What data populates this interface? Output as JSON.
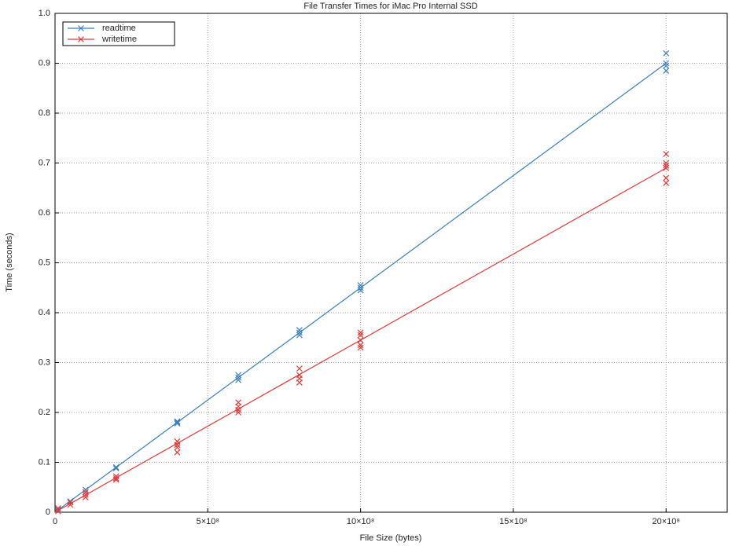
{
  "chart_data": {
    "type": "scatter",
    "title": "File Transfer Times for iMac Pro Internal SSD",
    "x_label": "File Size (bytes)",
    "y_label": "Time (seconds)",
    "xlim": [
      0,
      2200000000
    ],
    "ylim": [
      0,
      1
    ],
    "xticks": [
      0,
      {
        "value": 500000000,
        "label": "5×10⁸"
      },
      {
        "value": 1000000000,
        "label": "10×10⁸"
      },
      {
        "value": 1500000000,
        "label": "15×10⁸"
      },
      {
        "value": 2000000000,
        "label": "20×10⁸"
      }
    ],
    "yticks": [
      0,
      0.1,
      0.2,
      0.3,
      0.4,
      0.5,
      0.6,
      0.7,
      0.8,
      0.9,
      {
        "value": 1,
        "label": "1.0"
      }
    ],
    "grid": true,
    "legend": "upper-left",
    "series": [
      {
        "name": "readtime",
        "color": "#3a7fc0",
        "x": [
          10000000,
          50000000,
          50000000,
          100000000,
          100000000,
          200000000,
          200000000,
          400000000,
          400000000,
          400000000,
          600000000,
          600000000,
          600000000,
          800000000,
          800000000,
          800000000,
          1000000000,
          1000000000,
          1000000000,
          2000000000,
          2000000000,
          2000000000,
          2000000000
        ],
        "values": [
          0.005,
          0.022,
          0.02,
          0.045,
          0.04,
          0.09,
          0.088,
          0.182,
          0.18,
          0.178,
          0.275,
          0.27,
          0.265,
          0.365,
          0.36,
          0.355,
          0.455,
          0.45,
          0.445,
          0.92,
          0.9,
          0.895,
          0.885
        ],
        "fit": {
          "x": [
            0,
            2000000000
          ],
          "values": [
            0,
            0.9
          ]
        }
      },
      {
        "name": "writetime",
        "color": "#e03a3a",
        "x": [
          10000000,
          10000000,
          50000000,
          50000000,
          100000000,
          100000000,
          100000000,
          200000000,
          200000000,
          200000000,
          400000000,
          400000000,
          400000000,
          400000000,
          600000000,
          600000000,
          600000000,
          600000000,
          800000000,
          800000000,
          800000000,
          800000000,
          1000000000,
          1000000000,
          1000000000,
          1000000000,
          1000000000,
          2000000000,
          2000000000,
          2000000000,
          2000000000,
          2000000000,
          2000000000
        ],
        "values": [
          0.008,
          0.002,
          0.02,
          0.015,
          0.04,
          0.035,
          0.03,
          0.072,
          0.068,
          0.065,
          0.142,
          0.135,
          0.13,
          0.12,
          0.22,
          0.212,
          0.205,
          0.2,
          0.288,
          0.275,
          0.268,
          0.26,
          0.36,
          0.355,
          0.345,
          0.335,
          0.33,
          0.718,
          0.7,
          0.695,
          0.69,
          0.67,
          0.66
        ],
        "fit": {
          "x": [
            0,
            2000000000
          ],
          "values": [
            0,
            0.69
          ]
        }
      }
    ]
  }
}
